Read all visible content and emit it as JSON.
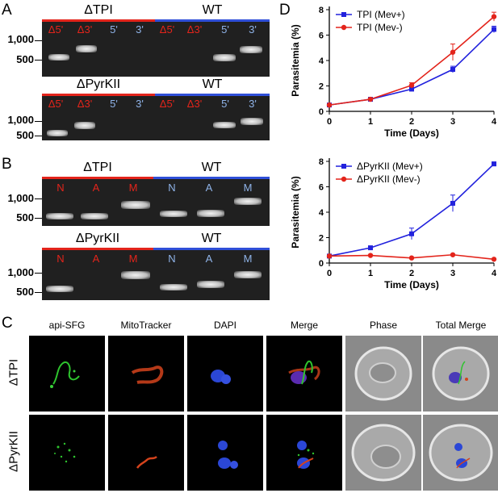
{
  "panel_labels": {
    "a": "A",
    "b": "B",
    "c": "C",
    "d": "D"
  },
  "panel_a": {
    "gel1": {
      "left_title": "ΔTPI",
      "right_title": "WT",
      "lanes": [
        "Δ5'",
        "Δ3'",
        "5'",
        "3'",
        "Δ5'",
        "Δ3'",
        "5'",
        "3'"
      ]
    },
    "gel2": {
      "left_title": "ΔPyrKII",
      "right_title": "WT",
      "lanes": [
        "Δ5'",
        "Δ3'",
        "5'",
        "3'",
        "Δ5'",
        "Δ3'",
        "5'",
        "3'"
      ]
    },
    "size_1000": "1,000",
    "size_500": "500"
  },
  "panel_b": {
    "gel1": {
      "left_title": "ΔTPI",
      "right_title": "WT",
      "lanes": [
        "N",
        "A",
        "M",
        "N",
        "A",
        "M"
      ]
    },
    "gel2": {
      "left_title": "ΔPyrKII",
      "right_title": "WT",
      "lanes": [
        "N",
        "A",
        "M",
        "N",
        "A",
        "M"
      ]
    },
    "size_1000": "1,000",
    "size_500": "500"
  },
  "panel_c": {
    "columns": [
      "api-SFG",
      "MitoTracker",
      "DAPI",
      "Merge",
      "Phase",
      "Total Merge"
    ],
    "rows": [
      "ΔTPI",
      "ΔPyrKII"
    ]
  },
  "chart_data": [
    {
      "type": "line",
      "x": [
        0,
        1,
        2,
        3,
        4
      ],
      "xlabel": "Time (Days)",
      "ylabel": "Parasitemia (%)",
      "xlim": [
        0,
        4
      ],
      "ylim": [
        0,
        8
      ],
      "yticks": [
        0,
        2,
        4,
        6,
        8
      ],
      "legend": "top-left",
      "series": [
        {
          "name": "TPI (Mev+)",
          "color": "#2222dd",
          "marker": "square",
          "values": [
            0.5,
            0.95,
            1.75,
            3.3,
            6.45
          ],
          "errors": [
            0.05,
            0.1,
            0.15,
            0.25,
            0.25
          ]
        },
        {
          "name": "TPI (Mev-)",
          "color": "#e3241b",
          "marker": "circle",
          "values": [
            0.5,
            0.95,
            2.05,
            4.65,
            7.45
          ],
          "errors": [
            0.05,
            0.1,
            0.2,
            0.65,
            0.35
          ]
        }
      ]
    },
    {
      "type": "line",
      "x": [
        0,
        1,
        2,
        3,
        4
      ],
      "xlabel": "Time (Days)",
      "ylabel": "Parasitemia (%)",
      "xlim": [
        0,
        4
      ],
      "ylim": [
        0,
        8
      ],
      "yticks": [
        0,
        2,
        4,
        6,
        8
      ],
      "legend": "top-left",
      "series": [
        {
          "name": "ΔPyrKII (Mev+)",
          "color": "#2222dd",
          "marker": "square",
          "values": [
            0.55,
            1.2,
            2.3,
            4.7,
            7.8
          ],
          "errors": [
            0.05,
            0.1,
            0.45,
            0.65,
            0.15
          ]
        },
        {
          "name": "ΔPyrKII (Mev-)",
          "color": "#e3241b",
          "marker": "circle",
          "values": [
            0.55,
            0.6,
            0.4,
            0.65,
            0.3
          ],
          "errors": [
            0.05,
            0.05,
            0.05,
            0.05,
            0.05
          ]
        }
      ]
    }
  ]
}
